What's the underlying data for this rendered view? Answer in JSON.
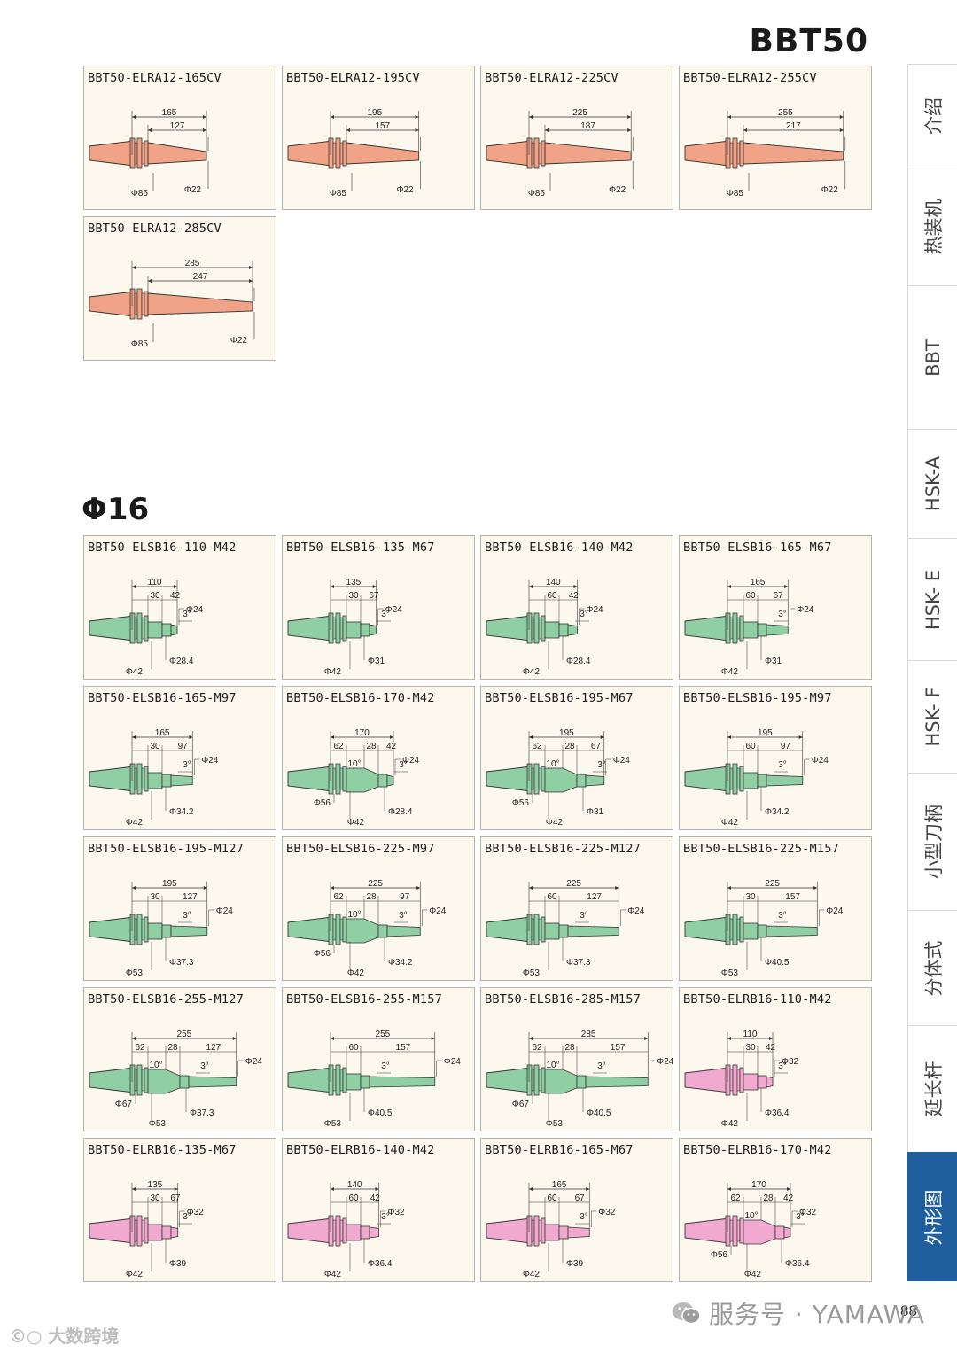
{
  "header": {
    "series": "BBT50"
  },
  "section_title": "Φ16",
  "page_number": "88",
  "footer_text": "服务号 · YAMAWA",
  "watermark": "大数跨境",
  "tabs": [
    {
      "label": "介绍",
      "active": false
    },
    {
      "label": "热装机",
      "active": false
    },
    {
      "label": "BBT",
      "active": false
    },
    {
      "label": "HSK-A",
      "active": false
    },
    {
      "label": "HSK- E",
      "active": false
    },
    {
      "label": "HSK- F",
      "active": false
    },
    {
      "label": "小型刀柄",
      "active": false
    },
    {
      "label": "分体式",
      "active": false
    },
    {
      "label": "延长杆",
      "active": false
    },
    {
      "label": "外形图",
      "active": true
    }
  ],
  "colors": {
    "orange": "#f0a386",
    "green": "#8fcfa3",
    "pink": "#f2a9d0",
    "tab_active": "#1f5f9e"
  },
  "cards": [
    {
      "name": "BBT50-ELRA12-165CV",
      "type": "orange",
      "len": "165",
      "len2": "127",
      "d_base": "Φ85",
      "d_tip": "Φ22"
    },
    {
      "name": "BBT50-ELRA12-195CV",
      "type": "orange",
      "len": "195",
      "len2": "157",
      "d_base": "Φ85",
      "d_tip": "Φ22"
    },
    {
      "name": "BBT50-ELRA12-225CV",
      "type": "orange",
      "len": "225",
      "len2": "187",
      "d_base": "Φ85",
      "d_tip": "Φ22"
    },
    {
      "name": "BBT50-ELRA12-255CV",
      "type": "orange",
      "len": "255",
      "len2": "217",
      "d_base": "Φ85",
      "d_tip": "Φ22"
    },
    {
      "name": "BBT50-ELRA12-285CV",
      "type": "orange",
      "len": "285",
      "len2": "247",
      "d_base": "Φ85",
      "d_tip": "Φ22"
    },
    {
      "name": "BBT50-ELSB16-110-M42",
      "type": "green",
      "len": "110",
      "parts": [
        "30",
        "42"
      ],
      "angle": "3°",
      "d_base": "Φ42",
      "d_tip": "Φ24",
      "d_neck": "Φ28.4"
    },
    {
      "name": "BBT50-ELSB16-135-M67",
      "type": "green",
      "len": "135",
      "parts": [
        "30",
        "67"
      ],
      "angle": "3°",
      "d_base": "Φ42",
      "d_tip": "Φ24",
      "d_neck": "Φ31"
    },
    {
      "name": "BBT50-ELSB16-140-M42",
      "type": "green",
      "len": "140",
      "parts": [
        "60",
        "42"
      ],
      "angle": "3°",
      "d_base": "Φ42",
      "d_tip": "Φ24",
      "d_neck": "Φ28.4"
    },
    {
      "name": "BBT50-ELSB16-165-M67",
      "type": "green",
      "len": "165",
      "parts": [
        "60",
        "67"
      ],
      "angle": "3°",
      "d_base": "Φ42",
      "d_tip": "Φ24",
      "d_neck": "Φ31"
    },
    {
      "name": "BBT50-ELSB16-165-M97",
      "type": "green",
      "len": "165",
      "parts": [
        "30",
        "97"
      ],
      "angle": "3°",
      "d_base": "Φ42",
      "d_tip": "Φ24",
      "d_neck": "Φ34.2"
    },
    {
      "name": "BBT50-ELSB16-170-M42",
      "type": "green",
      "len": "170",
      "parts": [
        "62",
        "28",
        "42"
      ],
      "angle": "3°",
      "angle2": "10°",
      "d_base2": "Φ56",
      "d_base": "Φ42",
      "d_tip": "Φ24",
      "d_neck": "Φ28.4"
    },
    {
      "name": "BBT50-ELSB16-195-M67",
      "type": "green",
      "len": "195",
      "parts": [
        "62",
        "28",
        "67"
      ],
      "angle": "3°",
      "angle2": "10°",
      "d_base2": "Φ56",
      "d_base": "Φ42",
      "d_tip": "Φ24",
      "d_neck": "Φ31"
    },
    {
      "name": "BBT50-ELSB16-195-M97",
      "type": "green",
      "len": "195",
      "parts": [
        "60",
        "97"
      ],
      "angle": "3°",
      "d_base": "Φ42",
      "d_tip": "Φ24",
      "d_neck": "Φ34.2"
    },
    {
      "name": "BBT50-ELSB16-195-M127",
      "type": "green",
      "len": "195",
      "parts": [
        "30",
        "127"
      ],
      "angle": "3°",
      "d_base": "Φ53",
      "d_tip": "Φ24",
      "d_neck": "Φ37.3"
    },
    {
      "name": "BBT50-ELSB16-225-M97",
      "type": "green",
      "len": "225",
      "parts": [
        "62",
        "28",
        "97"
      ],
      "angle": "3°",
      "angle2": "10°",
      "d_base2": "Φ56",
      "d_base": "Φ42",
      "d_tip": "Φ24",
      "d_neck": "Φ34.2"
    },
    {
      "name": "BBT50-ELSB16-225-M127",
      "type": "green",
      "len": "225",
      "parts": [
        "60",
        "127"
      ],
      "angle": "3°",
      "d_base": "Φ53",
      "d_tip": "Φ24",
      "d_neck": "Φ37.3"
    },
    {
      "name": "BBT50-ELSB16-225-M157",
      "type": "green",
      "len": "225",
      "parts": [
        "30",
        "157"
      ],
      "angle": "3°",
      "d_base": "Φ53",
      "d_tip": "Φ24",
      "d_neck": "Φ40.5"
    },
    {
      "name": "BBT50-ELSB16-255-M127",
      "type": "green",
      "len": "255",
      "parts": [
        "62",
        "28",
        "127"
      ],
      "angle": "3°",
      "angle2": "10°",
      "d_base2": "Φ67",
      "d_base": "Φ53",
      "d_tip": "Φ24",
      "d_neck": "Φ37.3"
    },
    {
      "name": "BBT50-ELSB16-255-M157",
      "type": "green",
      "len": "255",
      "parts": [
        "60",
        "157"
      ],
      "angle": "3°",
      "d_base": "Φ53",
      "d_tip": "Φ24",
      "d_neck": "Φ40.5"
    },
    {
      "name": "BBT50-ELSB16-285-M157",
      "type": "green",
      "len": "285",
      "parts": [
        "62",
        "28",
        "157"
      ],
      "angle": "3°",
      "angle2": "10°",
      "d_base2": "Φ67",
      "d_base": "Φ53",
      "d_tip": "Φ24",
      "d_neck": "Φ40.5"
    },
    {
      "name": "BBT50-ELRB16-110-M42",
      "type": "pink",
      "len": "110",
      "parts": [
        "30",
        "42"
      ],
      "angle": "3°",
      "d_base": "Φ42",
      "d_tip": "Φ32",
      "d_neck": "Φ36.4"
    },
    {
      "name": "BBT50-ELRB16-135-M67",
      "type": "pink",
      "len": "135",
      "parts": [
        "30",
        "67"
      ],
      "angle": "3°",
      "d_base": "Φ42",
      "d_tip": "Φ32",
      "d_neck": "Φ39"
    },
    {
      "name": "BBT50-ELRB16-140-M42",
      "type": "pink",
      "len": "140",
      "parts": [
        "60",
        "42"
      ],
      "angle": "3°",
      "d_base": "Φ42",
      "d_tip": "Φ32",
      "d_neck": "Φ36.4"
    },
    {
      "name": "BBT50-ELRB16-165-M67",
      "type": "pink",
      "len": "165",
      "parts": [
        "60",
        "67"
      ],
      "angle": "3°",
      "d_base": "Φ42",
      "d_tip": "Φ32",
      "d_neck": "Φ39"
    },
    {
      "name": "BBT50-ELRB16-170-M42",
      "type": "pink",
      "len": "170",
      "parts": [
        "62",
        "28",
        "42"
      ],
      "angle": "3°",
      "angle2": "10°",
      "d_base2": "Φ56",
      "d_base": "Φ42",
      "d_tip": "Φ32",
      "d_neck": "Φ36.4"
    }
  ]
}
